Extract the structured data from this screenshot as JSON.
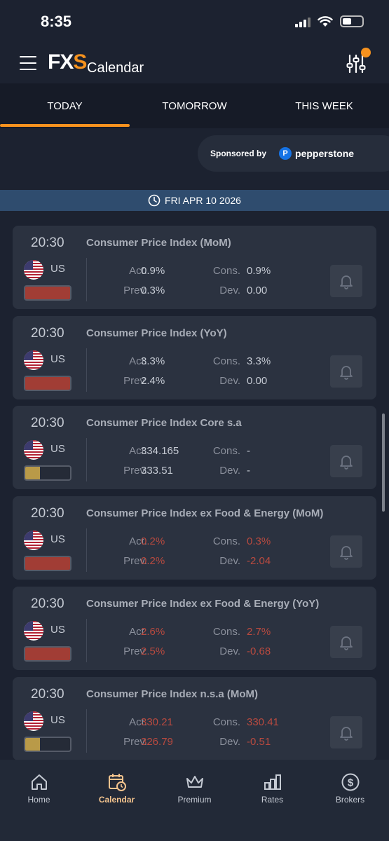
{
  "status": {
    "time": "8:35"
  },
  "header": {
    "logo_main": "FX",
    "logo_accent": "S",
    "title": "Calendar"
  },
  "tabs": [
    {
      "label": "TODAY",
      "active": true
    },
    {
      "label": "TOMORROW",
      "active": false
    },
    {
      "label": "THIS WEEK",
      "active": false
    }
  ],
  "sponsor": {
    "label": "Sponsored by",
    "brand": "pepperstone"
  },
  "date_bar": {
    "label": "FRI APR 10 2026"
  },
  "labels": {
    "actual": "Act.",
    "previous": "Prev.",
    "consensus": "Cons.",
    "deviation": "Dev."
  },
  "colors": {
    "accent": "#f6921e",
    "impact_high": "#a13d35",
    "impact_low": "#b99a48",
    "negative": "#b94a3f"
  },
  "events": [
    {
      "time": "20:30",
      "name": "Consumer Price Index (MoM)",
      "country": "US",
      "impact": "high",
      "impact_level": 1.0,
      "actual": "0.9%",
      "previous": "0.3%",
      "consensus": "0.9%",
      "deviation": "0.00",
      "negative": false
    },
    {
      "time": "20:30",
      "name": "Consumer Price Index (YoY)",
      "country": "US",
      "impact": "high",
      "impact_level": 1.0,
      "actual": "3.3%",
      "previous": "2.4%",
      "consensus": "3.3%",
      "deviation": "0.00",
      "negative": false
    },
    {
      "time": "20:30",
      "name": "Consumer Price Index Core s.a",
      "country": "US",
      "impact": "low",
      "impact_level": 0.33,
      "actual": "334.165",
      "previous": "333.51",
      "consensus": "-",
      "deviation": "-",
      "negative": false
    },
    {
      "time": "20:30",
      "name": "Consumer Price Index ex Food & Energy (MoM)",
      "country": "US",
      "impact": "high",
      "impact_level": 1.0,
      "actual": "0.2%",
      "previous": "0.2%",
      "consensus": "0.3%",
      "deviation": "-2.04",
      "negative": true
    },
    {
      "time": "20:30",
      "name": "Consumer Price Index ex Food & Energy (YoY)",
      "country": "US",
      "impact": "high",
      "impact_level": 1.0,
      "actual": "2.6%",
      "previous": "2.5%",
      "consensus": "2.7%",
      "deviation": "-0.68",
      "negative": true
    },
    {
      "time": "20:30",
      "name": "Consumer Price Index n.s.a (MoM)",
      "country": "US",
      "impact": "low",
      "impact_level": 0.33,
      "actual": "330.21",
      "previous": "326.79",
      "consensus": "330.41",
      "deviation": "-0.51",
      "negative": true
    }
  ],
  "nav": [
    {
      "label": "Home",
      "icon": "home-icon",
      "active": false
    },
    {
      "label": "Calendar",
      "icon": "calendar-clock-icon",
      "active": true
    },
    {
      "label": "Premium",
      "icon": "crown-icon",
      "active": false
    },
    {
      "label": "Rates",
      "icon": "bar-chart-icon",
      "active": false
    },
    {
      "label": "Brokers",
      "icon": "dollar-circle-icon",
      "active": false
    }
  ]
}
